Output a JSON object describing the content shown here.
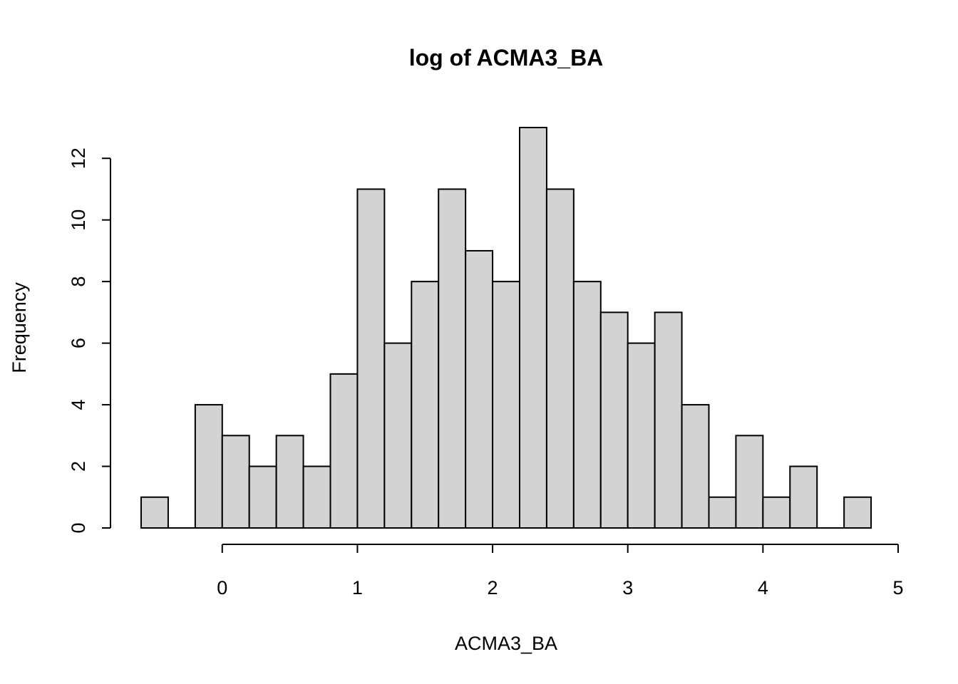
{
  "chart_data": {
    "type": "bar",
    "title": "log of ACMA3_BA",
    "xlabel": "ACMA3_BA",
    "ylabel": "Frequency",
    "bin_width": 0.2,
    "bins": [
      {
        "start": -0.6,
        "end": -0.4,
        "count": 1
      },
      {
        "start": -0.4,
        "end": -0.2,
        "count": 0
      },
      {
        "start": -0.2,
        "end": 0.0,
        "count": 4
      },
      {
        "start": 0.0,
        "end": 0.2,
        "count": 3
      },
      {
        "start": 0.2,
        "end": 0.4,
        "count": 2
      },
      {
        "start": 0.4,
        "end": 0.6,
        "count": 3
      },
      {
        "start": 0.6,
        "end": 0.8,
        "count": 2
      },
      {
        "start": 0.8,
        "end": 1.0,
        "count": 5
      },
      {
        "start": 1.0,
        "end": 1.2,
        "count": 11
      },
      {
        "start": 1.2,
        "end": 1.4,
        "count": 6
      },
      {
        "start": 1.4,
        "end": 1.6,
        "count": 8
      },
      {
        "start": 1.6,
        "end": 1.8,
        "count": 11
      },
      {
        "start": 1.8,
        "end": 2.0,
        "count": 9
      },
      {
        "start": 2.0,
        "end": 2.2,
        "count": 8
      },
      {
        "start": 2.2,
        "end": 2.4,
        "count": 13
      },
      {
        "start": 2.4,
        "end": 2.6,
        "count": 11
      },
      {
        "start": 2.6,
        "end": 2.8,
        "count": 8
      },
      {
        "start": 2.8,
        "end": 3.0,
        "count": 7
      },
      {
        "start": 3.0,
        "end": 3.2,
        "count": 6
      },
      {
        "start": 3.2,
        "end": 3.4,
        "count": 7
      },
      {
        "start": 3.4,
        "end": 3.6,
        "count": 4
      },
      {
        "start": 3.6,
        "end": 3.8,
        "count": 1
      },
      {
        "start": 3.8,
        "end": 4.0,
        "count": 3
      },
      {
        "start": 4.0,
        "end": 4.2,
        "count": 1
      },
      {
        "start": 4.2,
        "end": 4.4,
        "count": 2
      },
      {
        "start": 4.4,
        "end": 4.6,
        "count": 0
      },
      {
        "start": 4.6,
        "end": 4.8,
        "count": 1
      }
    ],
    "xlim": [
      -0.6,
      5.0
    ],
    "ylim": [
      0,
      13
    ],
    "x_ticks": [
      0,
      1,
      2,
      3,
      4,
      5
    ],
    "x_tick_labels": [
      "0",
      "1",
      "2",
      "3",
      "4",
      "5"
    ],
    "y_ticks": [
      0,
      2,
      4,
      6,
      8,
      10,
      12
    ],
    "y_tick_labels": [
      "0",
      "2",
      "4",
      "6",
      "8",
      "10",
      "12"
    ],
    "grid": false,
    "legend": "none",
    "bar_fill": "#d3d3d3",
    "bar_stroke": "#000000"
  }
}
